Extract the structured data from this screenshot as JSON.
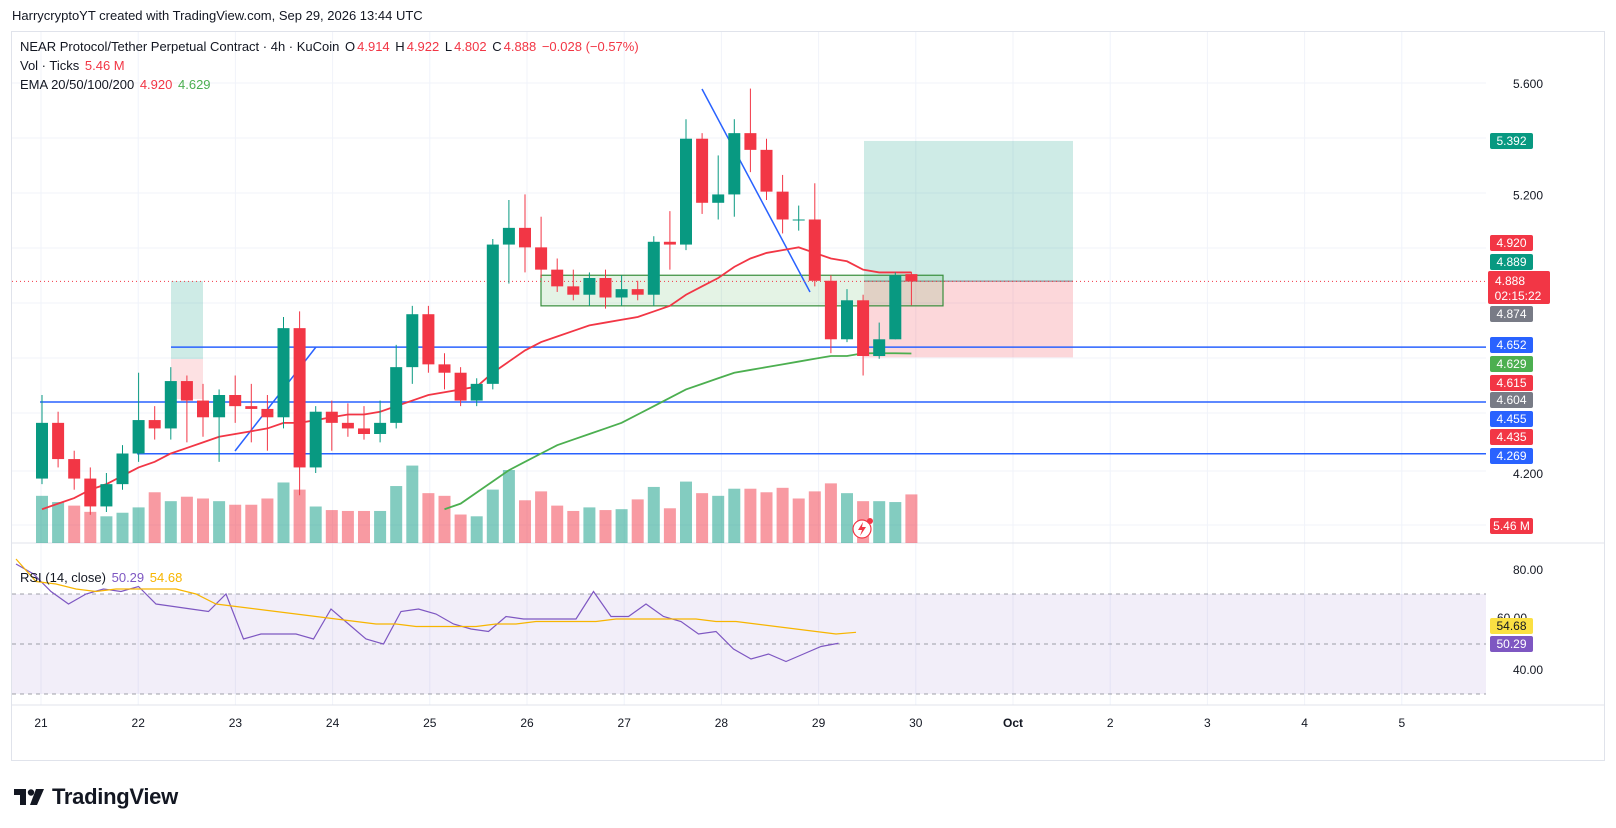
{
  "header": {
    "attribution": "HarrycryptoYT created with TradingView.com, Sep 29, 2026 13:44 UTC"
  },
  "legend": {
    "symbol": "NEAR Protocol/Tether Perpetual Contract · 4h · KuCoin",
    "o_label": "O",
    "o_value": "4.914",
    "h_label": "H",
    "h_value": "4.922",
    "l_label": "L",
    "l_value": "4.802",
    "c_label": "C",
    "c_value": "4.888",
    "change": "−0.028 (−0.57%)",
    "vol_label": "Vol · Ticks",
    "vol_value": "5.46 M",
    "ema_label": "EMA 20/50/100/200",
    "ema20_value": "4.920",
    "ema50_value": "4.629",
    "rsi_label": "RSI (14, close)",
    "rsi_value": "50.29",
    "rsi_ma_value": "54.68"
  },
  "logo": {
    "text": "TradingView"
  },
  "colors": {
    "up": "#089981",
    "down": "#f23645",
    "ema20": "#f23645",
    "ema50": "#4caf50",
    "level": "#2962ff",
    "rsi": "#7e57c2",
    "rsi_ma": "#f7b500"
  },
  "chart_data": [
    {
      "type": "candlestick",
      "interval": "4h",
      "ylim": [
        4.07,
        5.73
      ],
      "price_ticks": [
        "5.600",
        "5.200",
        "4.200"
      ],
      "x_ticks": [
        "21",
        "22",
        "23",
        "24",
        "25",
        "26",
        "27",
        "28",
        "29",
        "30",
        "Oct",
        "2",
        "3",
        "4",
        "5"
      ],
      "candles": [
        [
          4.18,
          4.38,
          4.16,
          4.48
        ],
        [
          4.38,
          4.25,
          4.22,
          4.42
        ],
        [
          4.25,
          4.18,
          4.14,
          4.28
        ],
        [
          4.18,
          4.08,
          4.05,
          4.22
        ],
        [
          4.08,
          4.16,
          4.06,
          4.2
        ],
        [
          4.16,
          4.27,
          4.14,
          4.3
        ],
        [
          4.27,
          4.39,
          4.24,
          4.56
        ],
        [
          4.39,
          4.36,
          4.32,
          4.44
        ],
        [
          4.36,
          4.53,
          4.32,
          4.58
        ],
        [
          4.53,
          4.46,
          4.31,
          4.55
        ],
        [
          4.46,
          4.4,
          4.33,
          4.52
        ],
        [
          4.4,
          4.48,
          4.24,
          4.5
        ],
        [
          4.48,
          4.44,
          4.38,
          4.55
        ],
        [
          4.44,
          4.43,
          4.31,
          4.52
        ],
        [
          4.43,
          4.4,
          4.28,
          4.48
        ],
        [
          4.4,
          4.72,
          4.36,
          4.76
        ],
        [
          4.72,
          4.22,
          4.12,
          4.78
        ],
        [
          4.22,
          4.42,
          4.2,
          4.44
        ],
        [
          4.42,
          4.38,
          4.28,
          4.46
        ],
        [
          4.38,
          4.36,
          4.33,
          4.45
        ],
        [
          4.36,
          4.34,
          4.32,
          4.44
        ],
        [
          4.34,
          4.38,
          4.31,
          4.46
        ],
        [
          4.38,
          4.58,
          4.36,
          4.66
        ],
        [
          4.58,
          4.77,
          4.52,
          4.8
        ],
        [
          4.77,
          4.59,
          4.56,
          4.8
        ],
        [
          4.59,
          4.56,
          4.5,
          4.63
        ],
        [
          4.56,
          4.46,
          4.44,
          4.58
        ],
        [
          4.46,
          4.52,
          4.44,
          4.54
        ],
        [
          4.52,
          5.02,
          4.5,
          5.04
        ],
        [
          5.02,
          5.08,
          4.88,
          5.18
        ],
        [
          5.08,
          5.01,
          4.92,
          5.2
        ],
        [
          5.01,
          4.93,
          4.9,
          5.12
        ],
        [
          4.93,
          4.87,
          4.85,
          4.97
        ],
        [
          4.87,
          4.84,
          4.82,
          4.93
        ],
        [
          4.84,
          4.9,
          4.8,
          4.92
        ],
        [
          4.9,
          4.83,
          4.79,
          4.93
        ],
        [
          4.83,
          4.86,
          4.8,
          4.91
        ],
        [
          4.86,
          4.84,
          4.82,
          4.89
        ],
        [
          4.84,
          5.03,
          4.8,
          5.05
        ],
        [
          5.03,
          5.02,
          4.93,
          5.14
        ],
        [
          5.02,
          5.4,
          5.0,
          5.47
        ],
        [
          5.4,
          5.17,
          5.13,
          5.42
        ],
        [
          5.17,
          5.2,
          5.11,
          5.34
        ],
        [
          5.2,
          5.42,
          5.12,
          5.47
        ],
        [
          5.42,
          5.36,
          5.28,
          5.58
        ],
        [
          5.36,
          5.21,
          5.18,
          5.4
        ],
        [
          5.21,
          5.11,
          5.06,
          5.27
        ],
        [
          5.11,
          5.11,
          5.07,
          5.16
        ],
        [
          5.11,
          4.89,
          4.87,
          5.24
        ],
        [
          4.89,
          4.68,
          4.63,
          4.91
        ],
        [
          4.68,
          4.82,
          4.67,
          4.86
        ],
        [
          4.82,
          4.62,
          4.55,
          4.84
        ],
        [
          4.62,
          4.68,
          4.61,
          4.74
        ],
        [
          4.68,
          4.91,
          4.68,
          4.92
        ],
        [
          4.914,
          4.888,
          4.802,
          4.922
        ]
      ],
      "ema20": [
        4.07,
        4.09,
        4.11,
        4.14,
        4.16,
        4.19,
        4.22,
        4.24,
        4.27,
        4.29,
        4.31,
        4.33,
        4.34,
        4.35,
        4.36,
        4.38,
        4.38,
        4.39,
        4.4,
        4.41,
        4.41,
        4.42,
        4.44,
        4.46,
        4.48,
        4.49,
        4.5,
        4.51,
        4.56,
        4.6,
        4.64,
        4.67,
        4.69,
        4.71,
        4.73,
        4.74,
        4.75,
        4.76,
        4.78,
        4.8,
        4.84,
        4.87,
        4.9,
        4.94,
        4.97,
        4.99,
        5.0,
        5.01,
        4.99,
        4.97,
        4.96,
        4.93,
        4.92,
        4.92,
        4.92
      ],
      "ema50_start_index": 25,
      "ema50": [
        4.07,
        4.09,
        4.13,
        4.17,
        4.21,
        4.24,
        4.27,
        4.3,
        4.32,
        4.34,
        4.36,
        4.38,
        4.41,
        4.44,
        4.47,
        4.5,
        4.52,
        4.54,
        4.56,
        4.57,
        4.58,
        4.59,
        4.6,
        4.61,
        4.62,
        4.62,
        4.63,
        4.63,
        4.63,
        4.629
      ],
      "levels": [
        {
          "value": 4.652,
          "label": "4.652",
          "color": "#2962ff",
          "text": "#ffffff"
        },
        {
          "value": 4.455,
          "label": "4.455",
          "color": "#2962ff",
          "text": "#ffffff"
        },
        {
          "value": 4.269,
          "label": "4.269",
          "color": "#2962ff",
          "text": "#ffffff"
        }
      ],
      "right_labels": [
        {
          "value": 5.392,
          "label": "5.392",
          "color": "#089981",
          "text": "#ffffff"
        },
        {
          "value": 4.92,
          "label": "4.920",
          "color": "#f23645",
          "text": "#ffffff"
        },
        {
          "value": 4.889,
          "label": "4.889",
          "color": "#089981",
          "text": "#ffffff"
        },
        {
          "value": 4.874,
          "label": "4.874",
          "color": "#787b86",
          "text": "#ffffff"
        },
        {
          "value": 4.629,
          "label": "4.629",
          "color": "#4caf50",
          "text": "#ffffff"
        },
        {
          "value": 4.615,
          "label": "4.615",
          "color": "#f23645",
          "text": "#ffffff"
        },
        {
          "value": 4.604,
          "label": "4.604",
          "color": "#787b86",
          "text": "#ffffff"
        },
        {
          "value": 4.435,
          "label": "4.435",
          "color": "#f23645",
          "text": "#ffffff"
        }
      ],
      "current_price": {
        "value": 4.888,
        "label": "4.888",
        "countdown": "02:15:22",
        "color": "#f23645"
      },
      "position": {
        "entry": 4.889,
        "target": 5.392,
        "stop": 4.615
      },
      "demand_zone": [
        4.8,
        4.874
      ]
    },
    {
      "type": "bar",
      "name": "Vol · Ticks",
      "last_label": "5.46 M",
      "values": [
        5.3,
        4.6,
        4.2,
        3.5,
        3.0,
        3.4,
        4.0,
        5.7,
        4.7,
        5.2,
        5.0,
        4.7,
        4.3,
        4.3,
        5.0,
        6.8,
        6.0,
        4.1,
        3.7,
        3.6,
        3.6,
        3.6,
        6.4,
        8.7,
        5.6,
        5.3,
        3.2,
        3.0,
        6.0,
        8.2,
        4.8,
        5.8,
        4.2,
        3.6,
        4.0,
        3.7,
        3.8,
        4.9,
        6.3,
        3.9,
        6.9,
        5.6,
        5.3,
        6.1,
        6.1,
        5.7,
        6.2,
        5.0,
        5.8,
        6.7,
        5.6,
        4.7,
        4.7,
        4.6,
        5.46
      ],
      "up": [
        true,
        true,
        false,
        false,
        true,
        true,
        true,
        false,
        true,
        false,
        false,
        true,
        false,
        false,
        false,
        true,
        false,
        true,
        false,
        false,
        false,
        true,
        true,
        true,
        false,
        false,
        false,
        true,
        true,
        true,
        false,
        false,
        false,
        false,
        true,
        false,
        true,
        false,
        true,
        false,
        true,
        false,
        true,
        true,
        false,
        false,
        false,
        false,
        false,
        false,
        true,
        false,
        true,
        true,
        false
      ]
    },
    {
      "type": "line",
      "name": "RSI (14, close)",
      "ylim": [
        28,
        86
      ],
      "y_ticks": [
        "80.00",
        "40.00"
      ],
      "bands": [
        70,
        50,
        30
      ],
      "rsi": [
        82,
        78,
        71,
        66,
        70,
        72,
        71,
        73,
        66,
        65,
        64,
        63,
        70,
        52,
        54,
        54,
        54,
        52,
        64,
        58,
        52,
        50,
        63,
        64,
        62,
        58,
        56,
        55,
        61,
        60,
        60,
        60,
        60,
        71,
        61,
        61,
        66,
        61,
        59,
        54,
        55,
        48,
        44,
        46,
        43,
        46,
        49,
        50.29
      ],
      "rsi_ma": [
        84,
        75,
        74,
        72,
        71,
        72,
        72,
        72,
        72,
        70,
        66,
        65,
        64,
        63,
        62,
        61,
        60,
        59,
        58,
        58,
        57,
        57,
        57,
        57,
        58,
        58,
        59,
        59,
        59,
        59,
        60,
        60,
        60,
        60,
        60,
        59,
        59,
        58,
        57,
        56,
        55,
        54,
        54.68
      ],
      "legend_rsi": "50.29",
      "legend_ma": "54.68",
      "hidden_tick": "60.00"
    }
  ]
}
